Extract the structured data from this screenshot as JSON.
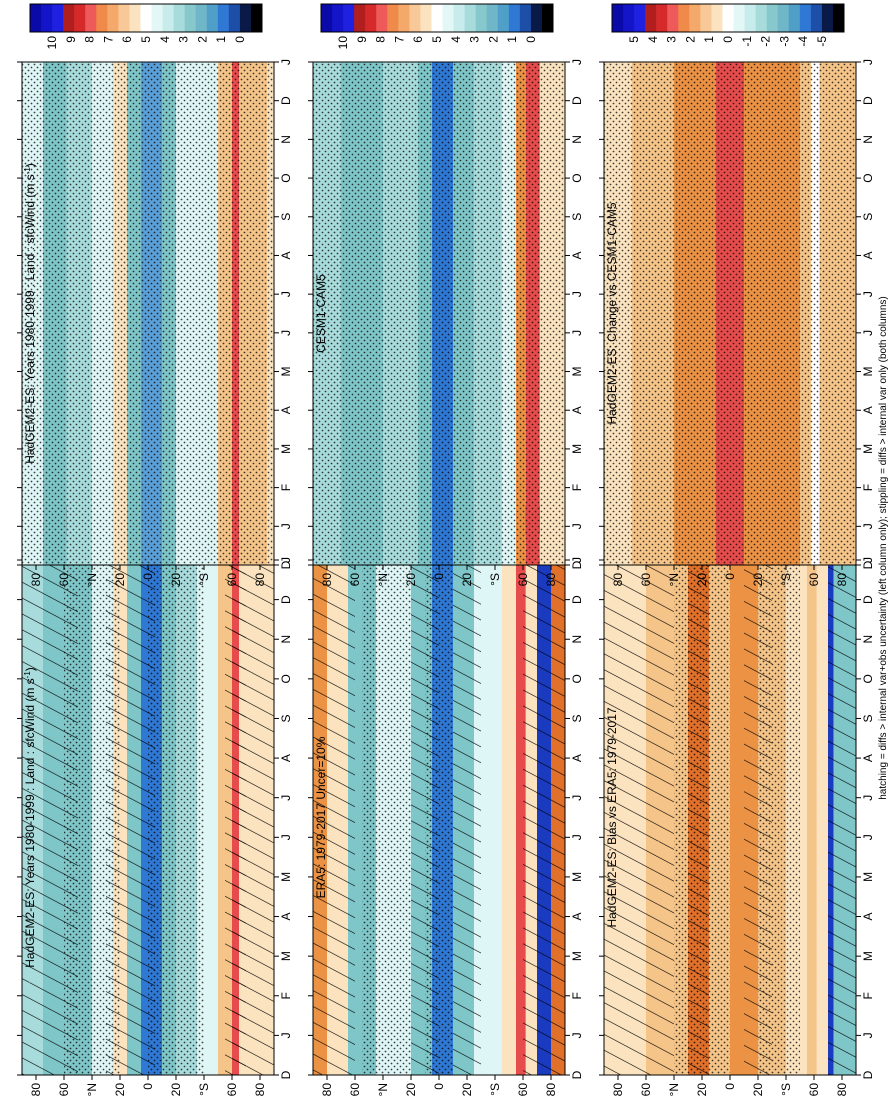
{
  "figure": {
    "footnote": "hatching = diffs > internal var+obs uncertainty (left column only); stippling = diffs > internal var only (both columns)"
  },
  "colors": {
    "ice": "#dff6f6",
    "teal_light": "#a8dcdc",
    "teal": "#7fc6c9",
    "blue_mid": "#5b9fd8",
    "blue_strong": "#2f78d4",
    "blue_deep": "#1a3bbf",
    "cream": "#fbe3c0",
    "tan": "#f5c489",
    "orange": "#eb9244",
    "orange_dark": "#e0702a",
    "red": "#e64c4c",
    "stipple": "#000000"
  },
  "chart_data": [
    {
      "id": "mean_model",
      "type": "heatmap",
      "title": "HadGEM2-ES: Years 1980-1999 : Land : sfcWind (m s",
      "title_sup": "-1",
      "title_end": ")",
      "x_ticks": [
        "D",
        "J",
        "F",
        "M",
        "A",
        "M",
        "J",
        "J",
        "A",
        "S",
        "O",
        "N",
        "D",
        "J"
      ],
      "y_ticks": [
        "80",
        "60",
        "°N",
        "20",
        "0",
        "20",
        "°S",
        "60",
        "80"
      ],
      "y_range": [
        -90,
        90
      ],
      "colorbar": {
        "labels": [
          "10",
          "9",
          "8",
          "7",
          "6",
          "5",
          "4",
          "3",
          "2",
          "1",
          "0"
        ],
        "range": [
          0,
          10
        ]
      },
      "bands": [
        {
          "lat": [
            75,
            90
          ],
          "value": 3.0
        },
        {
          "lat": [
            58,
            75
          ],
          "value": 2.0
        },
        {
          "lat": [
            40,
            58
          ],
          "value": 2.5
        },
        {
          "lat": [
            25,
            40
          ],
          "value": 3.5
        },
        {
          "lat": [
            15,
            25
          ],
          "value": 4.2
        },
        {
          "lat": [
            5,
            15
          ],
          "value": 2.0
        },
        {
          "lat": [
            -10,
            5
          ],
          "value": 1.5
        },
        {
          "lat": [
            -20,
            -10
          ],
          "value": 2.5
        },
        {
          "lat": [
            -35,
            -20
          ],
          "value": 3.0
        },
        {
          "lat": [
            -50,
            -35
          ],
          "value": 4.0
        },
        {
          "lat": [
            -60,
            -50
          ],
          "value": 5.0
        },
        {
          "lat": [
            -65,
            -60
          ],
          "value": 8.0
        },
        {
          "lat": [
            -85,
            -65
          ],
          "value": 4.6
        },
        {
          "lat": [
            -90,
            -85
          ],
          "value": 4.3
        }
      ],
      "hatch_bands": [
        [
          50,
          90
        ],
        [
          -5,
          30
        ],
        [
          -70,
          -55
        ],
        [
          -90,
          -60
        ]
      ],
      "stipple_bands": [
        [
          20,
          60
        ],
        [
          -40,
          0
        ]
      ]
    },
    {
      "id": "mean_ref1",
      "type": "heatmap",
      "title": "HadGEM2-ES: Years 1980-1999 : Land : sfcWind (m s",
      "title_sup": "-1",
      "title_end": ")",
      "x_ticks": [
        "D",
        "J",
        "F",
        "M",
        "A",
        "M",
        "J",
        "J",
        "A",
        "S",
        "O",
        "N",
        "D",
        "J"
      ],
      "y_ticks": [
        "80",
        "60",
        "°N",
        "20",
        "0",
        "20",
        "°S",
        "60",
        "80"
      ],
      "y_range": [
        -90,
        90
      ],
      "colorbar": {
        "labels": [
          "10",
          "9",
          "8",
          "7",
          "6",
          "5",
          "4",
          "3",
          "2",
          "1",
          "0"
        ],
        "range": [
          0,
          10
        ]
      },
      "bands": [
        {
          "lat": [
            75,
            90
          ],
          "value": 3.2
        },
        {
          "lat": [
            58,
            75
          ],
          "value": 2.3
        },
        {
          "lat": [
            40,
            58
          ],
          "value": 2.8
        },
        {
          "lat": [
            25,
            40
          ],
          "value": 3.3
        },
        {
          "lat": [
            15,
            25
          ],
          "value": 4.3
        },
        {
          "lat": [
            5,
            15
          ],
          "value": 2.2
        },
        {
          "lat": [
            -10,
            5
          ],
          "value": 1.6
        },
        {
          "lat": [
            -20,
            -10
          ],
          "value": 2.5
        },
        {
          "lat": [
            -35,
            -20
          ],
          "value": 3.2
        },
        {
          "lat": [
            -50,
            -35
          ],
          "value": 4.0
        },
        {
          "lat": [
            -60,
            -50
          ],
          "value": 5.0
        },
        {
          "lat": [
            -65,
            -60
          ],
          "value": 8.0
        },
        {
          "lat": [
            -85,
            -65
          ],
          "value": 4.8
        },
        {
          "lat": [
            -90,
            -85
          ],
          "value": 4.4
        }
      ],
      "hatch_bands": [],
      "stipple_bands": [
        [
          -90,
          90
        ]
      ]
    },
    {
      "id": "ref_era5",
      "type": "heatmap",
      "title": "ERA5: 1979-2017 Uncer=10%",
      "x_ticks": [
        "D",
        "J",
        "F",
        "M",
        "A",
        "M",
        "J",
        "J",
        "A",
        "S",
        "O",
        "N",
        "D",
        "J"
      ],
      "y_ticks": [
        "80",
        "60",
        "°N",
        "20",
        "0",
        "20",
        "°S",
        "60",
        "80"
      ],
      "y_range": [
        -90,
        90
      ],
      "colorbar": {
        "labels": [
          "10",
          "9",
          "8",
          "7",
          "6",
          "5",
          "4",
          "3",
          "2",
          "1",
          "0"
        ],
        "range": [
          0,
          10
        ]
      },
      "bands": [
        {
          "lat": [
            80,
            90
          ],
          "value": 6.0
        },
        {
          "lat": [
            65,
            80
          ],
          "value": 4.5
        },
        {
          "lat": [
            45,
            65
          ],
          "value": 2.5
        },
        {
          "lat": [
            20,
            45
          ],
          "value": 3.5
        },
        {
          "lat": [
            5,
            20
          ],
          "value": 2.5
        },
        {
          "lat": [
            -10,
            5
          ],
          "value": 1.5
        },
        {
          "lat": [
            -25,
            -10
          ],
          "value": 2.5
        },
        {
          "lat": [
            -45,
            -25
          ],
          "value": 4.0
        },
        {
          "lat": [
            -55,
            -45
          ],
          "value": 4.5
        },
        {
          "lat": [
            -62,
            -55
          ],
          "value": 7.5
        },
        {
          "lat": [
            -70,
            -62
          ],
          "value": 4.5
        },
        {
          "lat": [
            -80,
            -70
          ],
          "value": 10.0
        },
        {
          "lat": [
            -90,
            -80
          ],
          "value": 7.0
        }
      ],
      "hatch_bands": [
        [
          60,
          90
        ],
        [
          0,
          20
        ],
        [
          -30,
          -10
        ],
        [
          -90,
          -60
        ]
      ],
      "stipple_bands": [
        [
          20,
          55
        ],
        [
          -10,
          10
        ]
      ]
    },
    {
      "id": "ref_cesm",
      "type": "heatmap",
      "title": "CESM1-CAM5",
      "x_ticks": [
        "D",
        "J",
        "F",
        "M",
        "A",
        "M",
        "J",
        "J",
        "A",
        "S",
        "O",
        "N",
        "D",
        "J"
      ],
      "y_ticks": [
        "80",
        "60",
        "°N",
        "20",
        "0",
        "20",
        "°S",
        "60",
        "80"
      ],
      "y_range": [
        -90,
        90
      ],
      "colorbar": {
        "labels": [
          "10",
          "9",
          "8",
          "7",
          "6",
          "5",
          "4",
          "3",
          "2",
          "1",
          "0"
        ],
        "range": [
          0,
          10
        ]
      },
      "bands": [
        {
          "lat": [
            70,
            90
          ],
          "value": 3.0
        },
        {
          "lat": [
            40,
            70
          ],
          "value": 2.5
        },
        {
          "lat": [
            15,
            40
          ],
          "value": 3.0
        },
        {
          "lat": [
            5,
            15
          ],
          "value": 2.0
        },
        {
          "lat": [
            -10,
            5
          ],
          "value": 1.5
        },
        {
          "lat": [
            -25,
            -10
          ],
          "value": 2.5
        },
        {
          "lat": [
            -45,
            -25
          ],
          "value": 3.0
        },
        {
          "lat": [
            -55,
            -45
          ],
          "value": 3.5
        },
        {
          "lat": [
            -62,
            -55
          ],
          "value": 5.5
        },
        {
          "lat": [
            -72,
            -62
          ],
          "value": 7.5
        },
        {
          "lat": [
            -90,
            -72
          ],
          "value": 4.6
        }
      ],
      "hatch_bands": [],
      "stipple_bands": [
        [
          -90,
          90
        ]
      ]
    },
    {
      "id": "bias",
      "type": "heatmap",
      "title": "HadGEM2-ES: Bias vs ERA5: 1979-2017",
      "x_ticks": [
        "D",
        "J",
        "F",
        "M",
        "A",
        "M",
        "J",
        "J",
        "A",
        "S",
        "O",
        "N",
        "D",
        "J"
      ],
      "y_ticks": [
        "80",
        "60",
        "°N",
        "20",
        "0",
        "20",
        "°S",
        "60",
        "80"
      ],
      "y_range": [
        -90,
        90
      ],
      "colorbar": {
        "labels": [
          "5",
          "4",
          "3",
          "2",
          "1",
          "0",
          "-1",
          "-2",
          "-3",
          "-4",
          "-5"
        ],
        "range": [
          -5,
          5
        ]
      },
      "bands": [
        {
          "lat": [
            60,
            90
          ],
          "value": 0.4
        },
        {
          "lat": [
            30,
            60
          ],
          "value": 0.8
        },
        {
          "lat": [
            15,
            30
          ],
          "value": 1.8
        },
        {
          "lat": [
            0,
            15
          ],
          "value": 0.7
        },
        {
          "lat": [
            -20,
            0
          ],
          "value": 1.5
        },
        {
          "lat": [
            -40,
            -20
          ],
          "value": 0.9
        },
        {
          "lat": [
            -55,
            -40
          ],
          "value": 0.4
        },
        {
          "lat": [
            -62,
            -55
          ],
          "value": 1.2
        },
        {
          "lat": [
            -70,
            -62
          ],
          "value": 0.2
        },
        {
          "lat": [
            -74,
            -70
          ],
          "value": -4.5
        },
        {
          "lat": [
            -90,
            -74
          ],
          "value": -2.5
        }
      ],
      "hatch_bands": [
        [
          40,
          90
        ],
        [
          15,
          30
        ],
        [
          -30,
          -10
        ],
        [
          -90,
          -70
        ]
      ],
      "stipple_bands": [
        [
          0,
          40
        ],
        [
          -50,
          -20
        ]
      ]
    },
    {
      "id": "change",
      "type": "heatmap",
      "title": "HadGEM2-ES: Change vs CESM1-CAM5",
      "x_ticks": [
        "D",
        "J",
        "F",
        "M",
        "A",
        "M",
        "J",
        "J",
        "A",
        "S",
        "O",
        "N",
        "D",
        "J"
      ],
      "y_ticks": [
        "80",
        "60",
        "°N",
        "20",
        "0",
        "20",
        "°S",
        "60",
        "80"
      ],
      "y_range": [
        -90,
        90
      ],
      "colorbar": {
        "labels": [
          "5",
          "4",
          "3",
          "2",
          "1",
          "0",
          "-1",
          "-2",
          "-3",
          "-4",
          "-5"
        ],
        "range": [
          -5,
          5
        ]
      },
      "bands": [
        {
          "lat": [
            70,
            90
          ],
          "value": 0.6
        },
        {
          "lat": [
            40,
            70
          ],
          "value": 1.2
        },
        {
          "lat": [
            10,
            40
          ],
          "value": 1.5
        },
        {
          "lat": [
            -10,
            10
          ],
          "value": 2.2
        },
        {
          "lat": [
            -30,
            -10
          ],
          "value": 1.3
        },
        {
          "lat": [
            -50,
            -30
          ],
          "value": 1.5
        },
        {
          "lat": [
            -58,
            -50
          ],
          "value": 1.2
        },
        {
          "lat": [
            -64,
            -58
          ],
          "value": 0.0
        },
        {
          "lat": [
            -90,
            -64
          ],
          "value": 0.8
        }
      ],
      "hatch_bands": [],
      "stipple_bands": [
        [
          -90,
          90
        ]
      ]
    }
  ]
}
